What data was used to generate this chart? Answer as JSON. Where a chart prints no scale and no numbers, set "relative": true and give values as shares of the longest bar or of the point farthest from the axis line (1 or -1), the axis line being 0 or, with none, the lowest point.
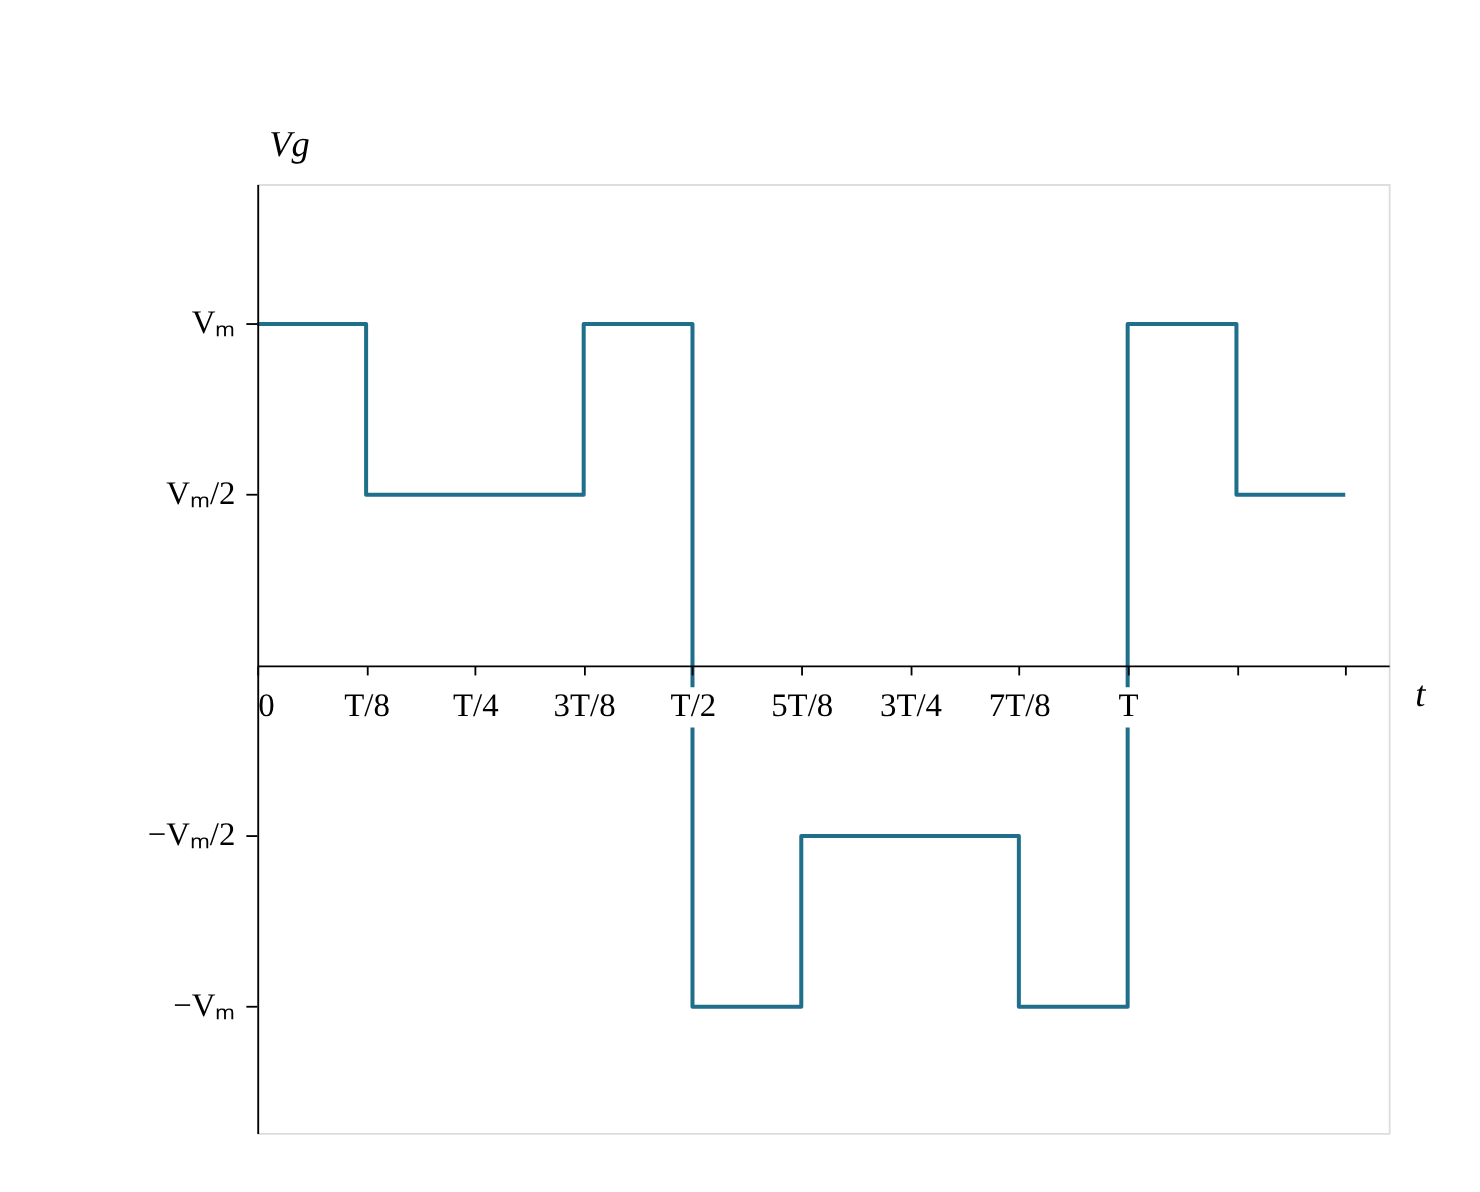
{
  "chart_data": {
    "type": "step",
    "relative": true,
    "xlabel": "t",
    "ylabel": "Vg",
    "categories": [
      "0",
      "T/8",
      "T/4",
      "3T/8",
      "T/2",
      "5T/8",
      "3T/4",
      "7T/8",
      "T",
      null,
      null
    ],
    "series": [
      {
        "color": "#1f6f8b",
        "values": [
          1,
          0.5,
          0.5,
          1,
          -1,
          -0.5,
          -0.5,
          -1,
          1,
          0.5,
          0.5
        ]
      }
    ],
    "annotations": [
      "Vₘ",
      "Vₘ/2",
      "−Vₘ/2",
      "−Vₘ"
    ],
    "grid": false,
    "marker": "none",
    "line_style": "solid"
  }
}
